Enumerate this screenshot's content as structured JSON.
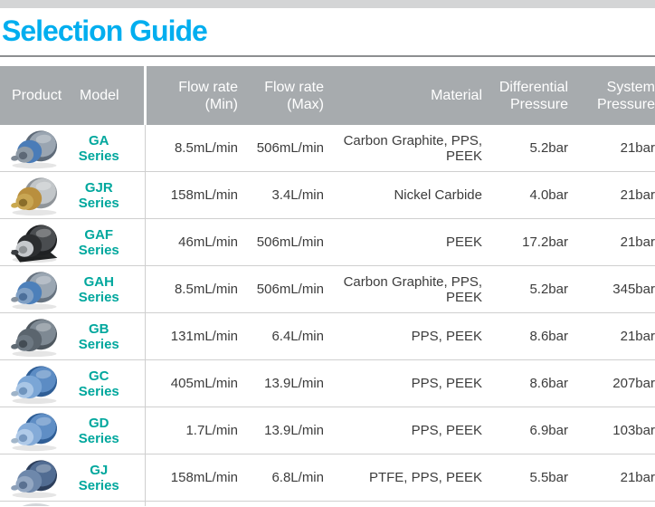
{
  "page": {
    "top_strip_color": "#D4D5D6",
    "title": "Selection Guide",
    "title_color": "#00AEEF"
  },
  "table": {
    "header_bg": "#A7ABAE",
    "header_text_color": "#FFFFFF",
    "model_link_color": "#00A79D",
    "row_border_color": "#CFCFCF",
    "columns": [
      {
        "id": "product",
        "line1": "Product",
        "line2": ""
      },
      {
        "id": "model",
        "line1": "Model",
        "line2": ""
      },
      {
        "id": "flow_min",
        "line1": "Flow rate",
        "line2": "(Min)"
      },
      {
        "id": "flow_max",
        "line1": "Flow rate",
        "line2": "(Max)"
      },
      {
        "id": "material",
        "line1": "Material",
        "line2": ""
      },
      {
        "id": "diff_pressure",
        "line1": "Differential",
        "line2": "Pressure"
      },
      {
        "id": "sys_pressure",
        "line1": "System",
        "line2": "Pressure"
      }
    ],
    "rows": [
      {
        "model": "GA Series",
        "flow_min": "8.5mL/min",
        "flow_max": "506mL/min",
        "material": "Carbon Graphite, PPS, PEEK",
        "diff_pressure": "5.2bar",
        "sys_pressure": "21bar",
        "photo": {
          "name": "ga-series-pump-photo",
          "bodyDark": "#5E6A78",
          "body": "#9AA5B1",
          "band": "#4A7CB8",
          "front": "#8E9AA6",
          "frontDark": "#5D6876",
          "nozzle": "#7D8894"
        }
      },
      {
        "model": "GJR Series",
        "flow_min": "158mL/min",
        "flow_max": "3.4L/min",
        "material": "Nickel Carbide",
        "diff_pressure": "4.0bar",
        "sys_pressure": "21bar",
        "photo": {
          "name": "gjr-series-pump-photo",
          "bodyDark": "#8F9499",
          "body": "#C2C6C9",
          "band": "#B98F3E",
          "front": "#C9A653",
          "frontDark": "#8A6D2A",
          "nozzle": "#CAA94F"
        }
      },
      {
        "model": "GAF Series",
        "flow_min": "46mL/min",
        "flow_max": "506mL/min",
        "material": "PEEK",
        "diff_pressure": "17.2bar",
        "sys_pressure": "21bar",
        "photo": {
          "name": "gaf-series-pump-photo",
          "bodyDark": "#1F2123",
          "body": "#4A4D50",
          "band": "#2C2E30",
          "front": "#C6C9CC",
          "frontDark": "#8E9294",
          "nozzle": "#3A3D40",
          "base": "#232526"
        }
      },
      {
        "model": "GAH Series",
        "flow_min": "8.5mL/min",
        "flow_max": "506mL/min",
        "material": "Carbon Graphite, PPS, PEEK",
        "diff_pressure": "5.2bar",
        "sys_pressure": "345bar",
        "photo": {
          "name": "gah-series-pump-photo",
          "bodyDark": "#66727F",
          "body": "#9AA6B2",
          "band": "#4D80BA",
          "front": "#7F9FC4",
          "frontDark": "#4C6F9A",
          "nozzle": "#8793A0"
        }
      },
      {
        "model": "GB Series",
        "flow_min": "131mL/min",
        "flow_max": "6.4L/min",
        "material": "PPS, PEEK",
        "diff_pressure": "8.6bar",
        "sys_pressure": "21bar",
        "photo": {
          "name": "gb-series-pump-photo",
          "bodyDark": "#4E575F",
          "body": "#7E8993",
          "band": "#5B656E",
          "front": "#6D7882",
          "frontDark": "#434C54",
          "nozzle": "#5F6A73"
        }
      },
      {
        "model": "GC Series",
        "flow_min": "405mL/min",
        "flow_max": "13.9L/min",
        "material": "PPS, PEEK",
        "diff_pressure": "8.6bar",
        "sys_pressure": "207bar",
        "photo": {
          "name": "gc-series-pump-photo",
          "bodyDark": "#2F5E96",
          "body": "#5C8CC4",
          "band": "#7BA6D6",
          "front": "#A9C6E6",
          "frontDark": "#6F94BD",
          "nozzle": "#9FB4C9"
        }
      },
      {
        "model": "GD Series",
        "flow_min": "1.7L/min",
        "flow_max": "13.9L/min",
        "material": "PPS, PEEK",
        "diff_pressure": "6.9bar",
        "sys_pressure": "103bar",
        "photo": {
          "name": "gd-series-pump-photo",
          "bodyDark": "#2F5E96",
          "body": "#5F8EC5",
          "band": "#84ABD8",
          "front": "#B0CAE8",
          "frontDark": "#7697BF",
          "nozzle": "#A2B6CA"
        }
      },
      {
        "model": "GJ Series",
        "flow_min": "158mL/min",
        "flow_max": "6.8L/min",
        "material": "PTFE, PPS, PEEK",
        "diff_pressure": "5.5bar",
        "sys_pressure": "21bar",
        "photo": {
          "name": "gj-series-pump-photo",
          "bodyDark": "#2D3F5C",
          "body": "#516C92",
          "band": "#6E88AB",
          "front": "#93A7C2",
          "frontDark": "#5A7191",
          "nozzle": "#8C9FB8"
        }
      }
    ],
    "partial_next_row_photo_color": "#D3D6D9"
  }
}
